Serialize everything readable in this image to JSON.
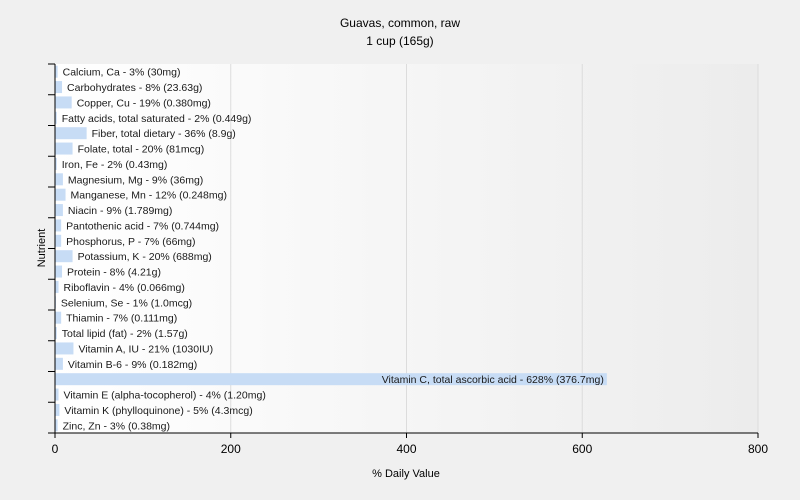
{
  "chart_data": {
    "type": "bar",
    "orientation": "horizontal",
    "title": "Guavas, common, raw",
    "subtitle": "1 cup (165g)",
    "xlabel": "% Daily Value",
    "ylabel": "Nutrient",
    "xlim": [
      0,
      800
    ],
    "xticks": [
      0,
      200,
      400,
      600,
      800
    ],
    "grid": true,
    "bar_color": "#c7dcf5",
    "categories": [
      "Calcium, Ca - 3% (30mg)",
      "Carbohydrates - 8% (23.63g)",
      "Copper, Cu - 19% (0.380mg)",
      "Fatty acids, total saturated - 2% (0.449g)",
      "Fiber, total dietary - 36% (8.9g)",
      "Folate, total - 20% (81mcg)",
      "Iron, Fe - 2% (0.43mg)",
      "Magnesium, Mg - 9% (36mg)",
      "Manganese, Mn - 12% (0.248mg)",
      "Niacin - 9% (1.789mg)",
      "Pantothenic acid - 7% (0.744mg)",
      "Phosphorus, P - 7% (66mg)",
      "Potassium, K - 20% (688mg)",
      "Protein - 8% (4.21g)",
      "Riboflavin - 4% (0.066mg)",
      "Selenium, Se - 1% (1.0mcg)",
      "Thiamin - 7% (0.111mg)",
      "Total lipid (fat) - 2% (1.57g)",
      "Vitamin A, IU - 21% (1030IU)",
      "Vitamin B-6 - 9% (0.182mg)",
      "Vitamin C, total ascorbic acid - 628% (376.7mg)",
      "Vitamin E (alpha-tocopherol) - 4% (1.20mg)",
      "Vitamin K (phylloquinone) - 5% (4.3mcg)",
      "Zinc, Zn - 3% (0.38mg)"
    ],
    "values": [
      3,
      8,
      19,
      2,
      36,
      20,
      2,
      9,
      12,
      9,
      7,
      7,
      20,
      8,
      4,
      1,
      7,
      2,
      21,
      9,
      628,
      4,
      5,
      3
    ]
  }
}
